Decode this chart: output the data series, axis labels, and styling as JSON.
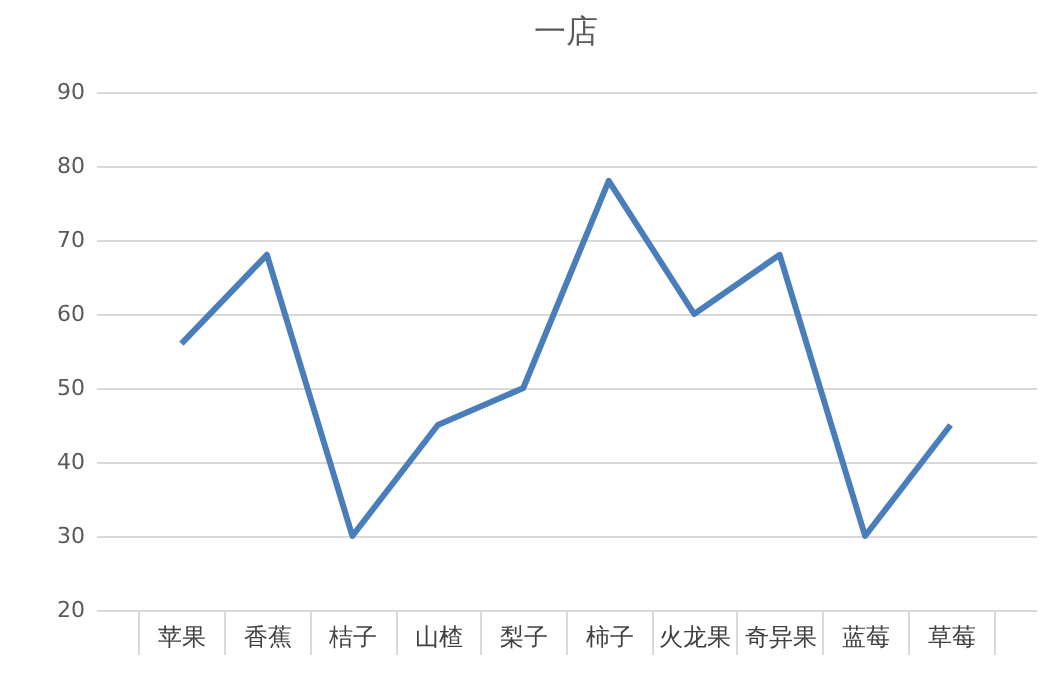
{
  "chart_data": {
    "type": "line",
    "title": "一店",
    "categories": [
      "苹果",
      "香蕉",
      "桔子",
      "山楂",
      "梨子",
      "柿子",
      "火龙果",
      "奇异果",
      "蓝莓",
      "草莓"
    ],
    "series": [
      {
        "color": "#4a7ebb",
        "values": [
          56,
          68,
          30,
          45,
          50,
          78,
          60,
          68,
          30,
          45
        ]
      }
    ],
    "ylim": [
      20,
      90
    ],
    "yticks": [
      20,
      30,
      40,
      50,
      60,
      70,
      80,
      90
    ],
    "grid": "y",
    "legend": false,
    "marker": "none",
    "line_style": "solid"
  }
}
